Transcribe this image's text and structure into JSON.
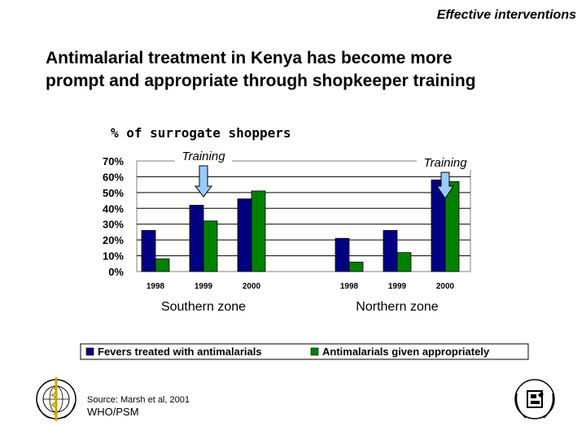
{
  "header": {
    "tag": "Effective interventions"
  },
  "title": {
    "line1": "Antimalarial treatment in Kenya has become more",
    "line2": "prompt and appropriate through shopkeeper training"
  },
  "chart_data": {
    "type": "bar",
    "y_title": "% of surrogate shoppers",
    "ylim": [
      0,
      70
    ],
    "y_ticks": [
      "70%",
      "60%",
      "50%",
      "40%",
      "30%",
      "20%",
      "10%",
      "0%"
    ],
    "groups": [
      {
        "zone": "Southern zone",
        "categories": [
          "1998",
          "1999",
          "2000"
        ],
        "training_label": "Training",
        "training_after": "1998"
      },
      {
        "zone": "Northern zone",
        "categories": [
          "1998",
          "1999",
          "2000"
        ],
        "training_label": "Training",
        "training_after": "1999"
      }
    ],
    "series": [
      {
        "name": "Fevers treated with antimalarials",
        "color": "#000080",
        "values": {
          "Southern zone": [
            26,
            42,
            46
          ],
          "Northern zone": [
            21,
            26,
            58
          ]
        }
      },
      {
        "name": "Antimalarials given appropriately",
        "color": "#008000",
        "values": {
          "Southern zone": [
            8,
            32,
            51
          ],
          "Northern zone": [
            6,
            12,
            57
          ]
        }
      }
    ],
    "legend_position": "bottom",
    "grid": true
  },
  "footer": {
    "source": "Source:  Marsh et al, 2001",
    "org": "WHO/PSM"
  },
  "logos": {
    "left": "who-emblem",
    "right": "un-emblem"
  }
}
